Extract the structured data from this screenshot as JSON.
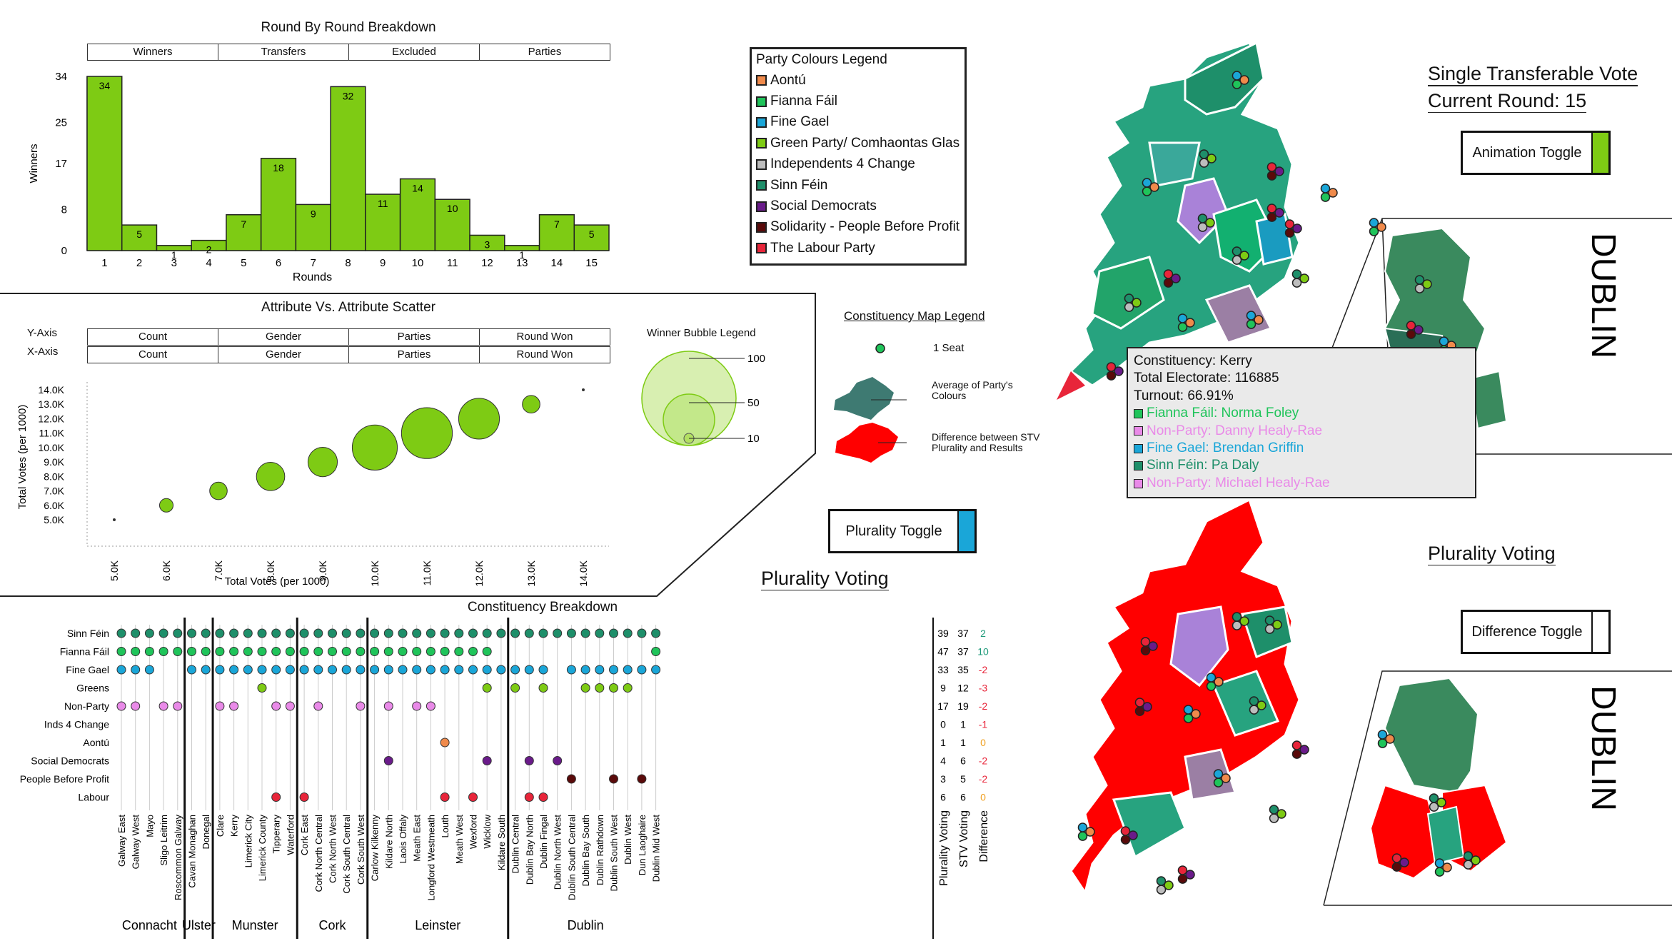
{
  "round_chart": {
    "title": "Round By Round Breakdown",
    "tabs": [
      "Winners",
      "Transfers",
      "Excluded",
      "Parties"
    ],
    "ylabel": "Winners",
    "xlabel": "Rounds",
    "yticks": [
      "34",
      "25",
      "17",
      "8",
      "0"
    ]
  },
  "scatter": {
    "title": "Attribute Vs. Attribute Scatter",
    "y_axis_label": "Y-Axis",
    "x_axis_label": "X-Axis",
    "y_options": [
      "Count",
      "Gender",
      "Parties",
      "Round Won"
    ],
    "x_options": [
      "Count",
      "Gender",
      "Parties",
      "Round Won"
    ],
    "ylabel": "Total Votes (per 1000)",
    "xlabel": "Total Votes (per 1000)",
    "yticks": [
      "14.0K",
      "13.0K",
      "12.0K",
      "11.0K",
      "10.0K",
      "9.0K",
      "8.0K",
      "7.0K",
      "6.0K",
      "5.0K"
    ],
    "xticks": [
      "5.0K",
      "6.0K",
      "7.0K",
      "8.0K",
      "9.0K",
      "10.0K",
      "11.0K",
      "12.0K",
      "13.0K",
      "14.0K"
    ]
  },
  "bubble_legend": {
    "title": "Winner Bubble Legend",
    "labels": [
      "100",
      "50",
      "10"
    ]
  },
  "party_legend": {
    "title": "Party Colours Legend",
    "items": [
      {
        "label": "Aontú",
        "color": "#f08a4b"
      },
      {
        "label": "Fianna Fáil",
        "color": "#1fc45a"
      },
      {
        "label": "Fine Gael",
        "color": "#1aa6d8"
      },
      {
        "label": "Green Party/ Comhaontas Glas",
        "color": "#7ecb14"
      },
      {
        "label": "Independents 4 Change",
        "color": "#bdbdbd"
      },
      {
        "label": "Sinn Féin",
        "color": "#1e8f6a"
      },
      {
        "label": "Social Democrats",
        "color": "#6a1b8a"
      },
      {
        "label": "Solidarity - People Before Profit",
        "color": "#5a0a0a"
      },
      {
        "label": "The Labour Party",
        "color": "#e8253a"
      }
    ]
  },
  "map_legend": {
    "title": "Constituency Map Legend",
    "seat": "1 Seat",
    "avg": "Average of Party's Colours",
    "diff": "Difference between STV Plurality and Results"
  },
  "toggles": {
    "plurality": "Plurality Toggle",
    "animation": "Animation Toggle",
    "difference": "Difference Toggle"
  },
  "headings": {
    "stv": "Single Transferable Vote",
    "round": "Current Round: 15",
    "plurality_mid": "Plurality Voting",
    "plurality_right": "Plurality Voting",
    "dublin_top": "DUBLIN",
    "dublin_bottom": "DUBLIN"
  },
  "tooltip": {
    "constituency": "Constituency: Kerry",
    "electorate": "Total Electorate: 116885",
    "turnout": "Turnout: 66.91%",
    "candidates": [
      {
        "text": "Fianna Fáil: Norma Foley",
        "color": "#1fc45a"
      },
      {
        "text": "Non-Party: Danny Healy-Rae",
        "color": "#e98ae8"
      },
      {
        "text": "Fine Gael: Brendan Griffin",
        "color": "#1aa6d8"
      },
      {
        "text": "Sinn Féin: Pa Daly",
        "color": "#1e8f6a"
      },
      {
        "text": "Non-Party: Michael Healy-Rae",
        "color": "#e98ae8"
      }
    ]
  },
  "constituency": {
    "title": "Constituency Breakdown",
    "rows": [
      "Sinn Féin",
      "Fianna Fáil",
      "Fine Gael",
      "Greens",
      "Non-Party",
      "Inds 4 Change",
      "Aontú",
      "Social Democrats",
      "People Before Profit",
      "Labour"
    ],
    "row_colors": [
      "#1e8f6a",
      "#1fc45a",
      "#1aa6d8",
      "#7ecb14",
      "#e98ae8",
      "#bdbdbd",
      "#f08a4b",
      "#6a1b8a",
      "#5a0a0a",
      "#e8253a"
    ],
    "regions": [
      "Connacht",
      "Ulster",
      "Munster",
      "Cork",
      "Leinster",
      "Dublin"
    ],
    "constituencies": [
      "Galway East",
      "Galway West",
      "Mayo",
      "Sligo Leitrim",
      "Roscommon Galway",
      "Cavan Monaghan",
      "Donegal",
      "Clare",
      "Kerry",
      "Limerick City",
      "Limerick County",
      "Tipperary",
      "Waterford",
      "Cork East",
      "Cork North Central",
      "Cork North West",
      "Cork South Central",
      "Cork South West",
      "Carlow Kilkenny",
      "Kildare North",
      "Laois Offaly",
      "Meath East",
      "Longford Westmeath",
      "Louth",
      "Meath West",
      "Wexford",
      "Wicklow",
      "Kildare South",
      "Dublin Central",
      "Dublin Bay North",
      "Dublin Fingal",
      "Dublin North West",
      "Dublin South Central",
      "Dublin Bay South",
      "Dublin Rathdown",
      "Dublin South West",
      "Dublin West",
      "Dun Laoghaire",
      "Dublin Mid West"
    ],
    "summary_headers": [
      "Plurality Voting",
      "STV Voting",
      "Difference"
    ],
    "plurality": [
      "39",
      "47",
      "33",
      "9",
      "17",
      "0",
      "1",
      "4",
      "3",
      "6"
    ],
    "stv": [
      "37",
      "37",
      "35",
      "12",
      "19",
      "1",
      "1",
      "6",
      "5",
      "6"
    ],
    "difference": [
      "2",
      "10",
      "-2",
      "-3",
      "-2",
      "-1",
      "0",
      "-2",
      "-2",
      "0"
    ]
  },
  "chart_data": [
    {
      "type": "bar",
      "title": "Round By Round Breakdown",
      "xlabel": "Rounds",
      "ylabel": "Winners",
      "categories": [
        "1",
        "2",
        "3",
        "4",
        "5",
        "6",
        "7",
        "8",
        "9",
        "10",
        "11",
        "12",
        "13",
        "14",
        "15"
      ],
      "values": [
        34,
        5,
        1,
        2,
        7,
        18,
        9,
        32,
        11,
        14,
        10,
        3,
        1,
        7,
        5
      ],
      "ylim": [
        0,
        34
      ]
    },
    {
      "type": "scatter",
      "title": "Attribute Vs. Attribute Scatter",
      "xlabel": "Total Votes (per 1000)",
      "ylabel": "Total Votes (per 1000)",
      "x": [
        5,
        6,
        7,
        8,
        9,
        10,
        11,
        12,
        13,
        14
      ],
      "y": [
        5,
        6,
        7,
        8,
        9,
        10,
        11,
        12,
        13,
        14
      ],
      "size": [
        1,
        3,
        5,
        13,
        14,
        33,
        42,
        27,
        5,
        0.5
      ],
      "xlim": [
        5,
        14
      ],
      "ylim": [
        5,
        14
      ]
    }
  ]
}
